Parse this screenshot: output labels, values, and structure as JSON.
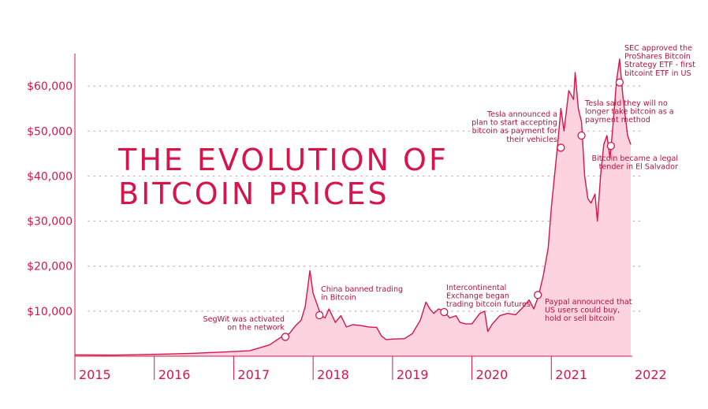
{
  "chart_data": {
    "type": "area",
    "title": [
      "THE EVOLUTION OF",
      "BITCOIN PRICES"
    ],
    "xlabel": "",
    "ylabel": "",
    "xlim": [
      2015.0,
      2022.0
    ],
    "ylim": [
      0,
      67000
    ],
    "y_ticks": [
      10000,
      20000,
      30000,
      40000,
      50000,
      60000
    ],
    "y_tick_labels": [
      "$10,000",
      "$20,000",
      "$30,000",
      "$40,000",
      "$50,000",
      "$60,000"
    ],
    "x_ticks": [
      2015,
      2016,
      2017,
      2018,
      2019,
      2020,
      2021,
      2022
    ],
    "x_tick_labels": [
      "2015",
      "2016",
      "2017",
      "2018",
      "2019",
      "2020",
      "2021",
      "2022"
    ],
    "grid": "horizontal dotted",
    "colors": {
      "line": "#d6154a",
      "fill": "#fcd3de",
      "text": "#d6154a",
      "annotation": "#b0143f",
      "grid": "#d9a0b2"
    },
    "series": [
      {
        "x": [
          2015.0,
          2015.5,
          2016.0,
          2016.5,
          2016.9,
          2017.2,
          2017.45,
          2017.6,
          2017.7,
          2017.78,
          2017.85,
          2017.9,
          2017.96,
          2018.0,
          2018.05,
          2018.1,
          2018.15,
          2018.2,
          2018.28,
          2018.35,
          2018.42,
          2018.5,
          2018.6,
          2018.7,
          2018.8,
          2018.86,
          2018.92,
          2019.0,
          2019.15,
          2019.25,
          2019.35,
          2019.42,
          2019.47,
          2019.52,
          2019.58,
          2019.65,
          2019.72,
          2019.8,
          2019.85,
          2019.92,
          2020.0,
          2020.1,
          2020.16,
          2020.2,
          2020.25,
          2020.35,
          2020.45,
          2020.55,
          2020.65,
          2020.72,
          2020.78,
          2020.84,
          2020.9,
          2020.96,
          2021.0,
          2021.04,
          2021.08,
          2021.12,
          2021.16,
          2021.22,
          2021.28,
          2021.3,
          2021.34,
          2021.38,
          2021.42,
          2021.46,
          2021.5,
          2021.55,
          2021.58,
          2021.62,
          2021.66,
          2021.7,
          2021.74,
          2021.78,
          2021.82,
          2021.86,
          2021.9,
          2021.96,
          2022.0
        ],
        "y": [
          300,
          250,
          400,
          650,
          950,
          1200,
          2500,
          4300,
          5000,
          6800,
          8000,
          11000,
          19000,
          14000,
          11500,
          9000,
          8500,
          10500,
          7500,
          9000,
          6500,
          7000,
          6800,
          6500,
          6400,
          4500,
          3700,
          3800,
          3900,
          5000,
          8000,
          12000,
          10500,
          9500,
          10500,
          10000,
          8500,
          9000,
          7500,
          7200,
          7200,
          9500,
          10000,
          5500,
          7000,
          9000,
          9500,
          9200,
          11000,
          12500,
          10500,
          13500,
          18000,
          24000,
          33000,
          40000,
          47000,
          55000,
          50000,
          59000,
          57000,
          63000,
          55000,
          52000,
          40000,
          35000,
          34000,
          36000,
          30000,
          40000,
          47000,
          49000,
          44000,
          52000,
          61000,
          66000,
          58000,
          49000,
          47000
        ]
      }
    ],
    "annotations": [
      {
        "x": 2017.65,
        "y": 4300,
        "lines": [
          "SegWit was activated",
          "on the network"
        ]
      },
      {
        "x": 2018.08,
        "y": 9100,
        "lines": [
          "China banned trading",
          "in Bitcoin"
        ]
      },
      {
        "x": 2019.65,
        "y": 9800,
        "lines": [
          "Intercontinental",
          "Exchange began",
          "trading bitcoin futures"
        ]
      },
      {
        "x": 2020.83,
        "y": 13600,
        "lines": [
          "Paypal announced that",
          "US users could buy,",
          "hold or sell bitcoin"
        ]
      },
      {
        "x": 2021.12,
        "y": 46300,
        "lines": [
          "Tesla announced a",
          "plan to start accepting",
          "bitcoin as payment for",
          "their vehicles"
        ]
      },
      {
        "x": 2021.38,
        "y": 49000,
        "lines": [
          "Tesla said they will no",
          "longer take bitcoin as a",
          "payment method"
        ]
      },
      {
        "x": 2021.75,
        "y": 46700,
        "lines": [
          "Bitcoin became a legal",
          "tender in El Salvador"
        ]
      },
      {
        "x": 2021.86,
        "y": 60800,
        "lines": [
          "SEC approved the",
          "ProShares Bitcoin",
          "Strategy ETF - first",
          "bitcoint ETF in US"
        ]
      }
    ]
  }
}
